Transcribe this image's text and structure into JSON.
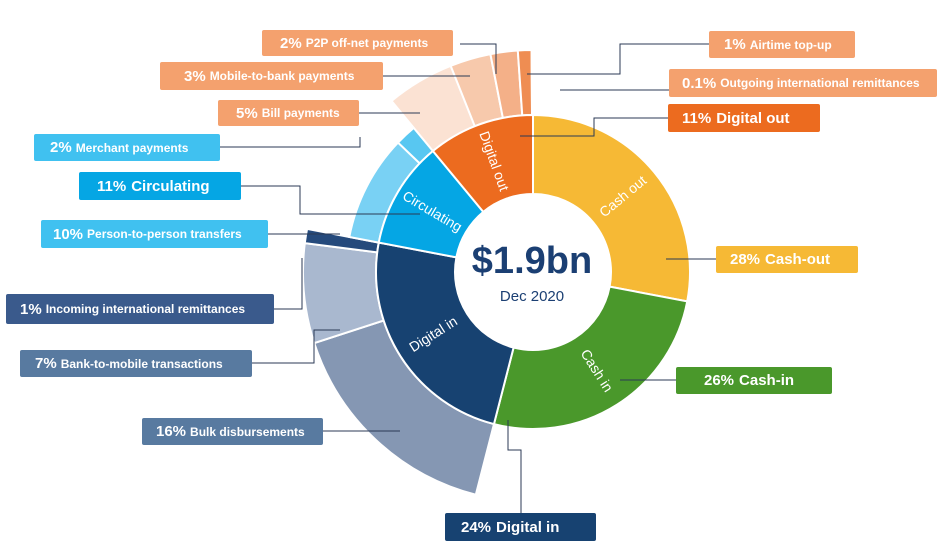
{
  "chart_data": {
    "type": "pie",
    "center": {
      "value": "$1.9bn",
      "date": "Dec 2020"
    },
    "inner_ring": [
      {
        "name": "Cash out",
        "value": 28,
        "color": "#f6b935"
      },
      {
        "name": "Cash in",
        "value": 26,
        "color": "#4a982b"
      },
      {
        "name": "Digital in",
        "value": 24,
        "color": "#174271"
      },
      {
        "name": "Circulating",
        "value": 11,
        "color": "#05a6e4"
      },
      {
        "name": "Digital out",
        "value": 11,
        "color": "#ec6b1f"
      }
    ],
    "outer_ring": [
      {
        "parent": "Digital in",
        "pct": "1%",
        "name": "Incoming international remittances",
        "value": 1,
        "color": "#254a7c"
      },
      {
        "parent": "Digital in",
        "pct": "7%",
        "name": "Bank-to-mobile transactions",
        "value": 7,
        "color": "#a9b8cf"
      },
      {
        "parent": "Digital in",
        "pct": "16%",
        "name": "Bulk disbursements",
        "value": 16,
        "color": "#8597b3"
      },
      {
        "parent": "Circulating",
        "pct": "10%",
        "name": "Person-to-person transfers",
        "value": 10,
        "color": "#79d1f4"
      },
      {
        "parent": "Circulating",
        "pct": "2%",
        "name": "Merchant payments",
        "value": 2,
        "color": "#58c7f1"
      },
      {
        "parent": "Digital out",
        "pct": "5%",
        "name": "Bill payments",
        "value": 5,
        "color": "#fbe2d3"
      },
      {
        "parent": "Digital out",
        "pct": "3%",
        "name": "Mobile-to-bank payments",
        "value": 3,
        "color": "#f7c9ac"
      },
      {
        "parent": "Digital out",
        "pct": "2%",
        "name": "P2P off-net payments",
        "value": 2,
        "color": "#f4b088"
      },
      {
        "parent": "Digital out",
        "pct": "1%",
        "name": "Airtime top-up",
        "value": 1,
        "color": "#ef8d52"
      },
      {
        "parent": "Digital out",
        "pct": "0.1%",
        "name": "Outgoing international remittances",
        "value": 0.1,
        "color": "#ec6b1f"
      }
    ],
    "group_labels": [
      {
        "pct": "28%",
        "name": "Cash-out"
      },
      {
        "pct": "26%",
        "name": "Cash-in"
      },
      {
        "pct": "24%",
        "name": "Digital in"
      },
      {
        "pct": "11%",
        "name": "Circulating"
      },
      {
        "pct": "11%",
        "name": "Digital out"
      }
    ]
  }
}
